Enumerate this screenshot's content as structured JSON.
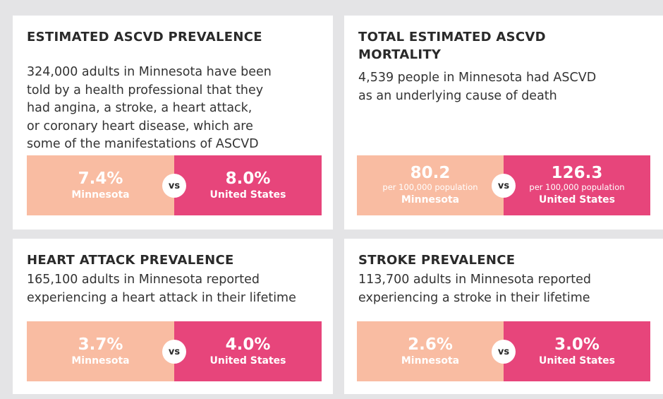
{
  "cards": [
    {
      "title": [
        "ESTIMATED ASCVD PREVALENCE"
      ],
      "description": [
        "324,000 adults in Minnesota have been",
        "told by a health professional that they",
        "had angina, a stroke, a heart attack,",
        "or coronary heart disease, which are",
        "some of the manifestations of ASCVD"
      ],
      "left": {
        "value": "7.4%",
        "label": "Minnesota"
      },
      "vs": "vs",
      "right": {
        "value": "8.0%",
        "label": "United States"
      }
    },
    {
      "title": [
        "TOTAL ESTIMATED ASCVD",
        "MORTALITY"
      ],
      "description": [
        "4,539 people in Minnesota had ASCVD",
        "as an underlying cause of death"
      ],
      "left": {
        "value": "80.2",
        "sub": "per 100,000 population",
        "label": "Minnesota"
      },
      "vs": "vs",
      "right": {
        "value": "126.3",
        "sub": "per 100,000 population",
        "label": "United States"
      }
    },
    {
      "title": [
        "HEART ATTACK PREVALENCE"
      ],
      "description": [
        "165,100 adults in Minnesota reported",
        "experiencing a heart attack in their lifetime"
      ],
      "left": {
        "value": "3.7%",
        "label": "Minnesota"
      },
      "vs": "vs",
      "right": {
        "value": "4.0%",
        "label": "United States"
      }
    },
    {
      "title": [
        "STROKE PREVALENCE"
      ],
      "description": [
        "113,700 adults in Minnesota reported",
        "experiencing a stroke in their lifetime"
      ],
      "left": {
        "value": "2.6%",
        "label": "Minnesota"
      },
      "vs": "vs",
      "right": {
        "value": "3.0%",
        "label": "United States"
      }
    }
  ]
}
